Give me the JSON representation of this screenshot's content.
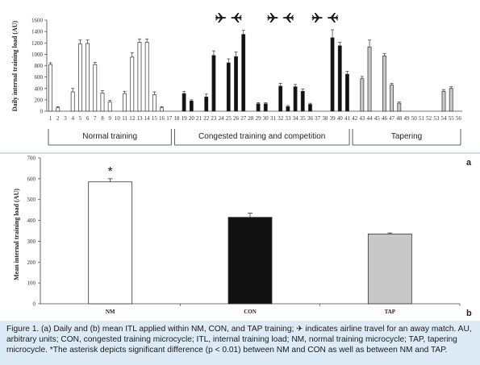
{
  "caption": "Figure 1.  (a) Daily and (b) mean ITL applied within NM, CON, and TAP training; ✈ indicates airline travel for an away match. AU, arbitrary units; CON, congested training microcycle; ITL, internal training load; NM, normal training microcycle; TAP, tapering microcycle. *The asterisk depicts significant difference (p < 0.01) between NM and CON as well as between NM and TAP.",
  "colors": {
    "normal": "#ffffff",
    "congested": "#111111",
    "tapering": "#c8c8c8",
    "outline": "#333333",
    "caption_bg": "#dcebf6"
  },
  "chart_data": [
    {
      "type": "bar",
      "panel_label": "a",
      "ylabel": "Daily internal training load (AU)",
      "ylim": [
        0,
        1600
      ],
      "yticks": [
        0,
        200,
        400,
        600,
        800,
        1000,
        1200,
        1400,
        1600
      ],
      "x": [
        1,
        2,
        3,
        4,
        5,
        6,
        7,
        8,
        9,
        10,
        11,
        12,
        13,
        14,
        15,
        16,
        17,
        18,
        19,
        20,
        21,
        22,
        23,
        24,
        25,
        26,
        27,
        28,
        29,
        30,
        31,
        32,
        33,
        34,
        35,
        36,
        37,
        38,
        39,
        40,
        41,
        42,
        43,
        44,
        45,
        46,
        47,
        48,
        49,
        50,
        51,
        52,
        53,
        54,
        55,
        56
      ],
      "values": [
        820,
        60,
        0,
        340,
        1180,
        1190,
        820,
        320,
        160,
        0,
        310,
        950,
        1210,
        1210,
        290,
        60,
        0,
        0,
        310,
        180,
        0,
        250,
        980,
        0,
        850,
        960,
        1350,
        0,
        130,
        130,
        0,
        440,
        80,
        430,
        350,
        120,
        0,
        0,
        1290,
        1150,
        650,
        0,
        570,
        1130,
        0,
        970,
        460,
        140,
        0,
        0,
        0,
        0,
        0,
        350,
        400,
        0
      ],
      "errors": [
        30,
        20,
        0,
        60,
        70,
        60,
        40,
        40,
        30,
        0,
        40,
        80,
        60,
        60,
        50,
        20,
        0,
        0,
        40,
        20,
        0,
        50,
        80,
        0,
        70,
        80,
        70,
        0,
        20,
        20,
        0,
        50,
        20,
        40,
        40,
        20,
        0,
        0,
        140,
        60,
        50,
        0,
        40,
        120,
        0,
        40,
        30,
        20,
        0,
        0,
        0,
        0,
        0,
        30,
        30,
        0
      ],
      "phase_of_day": [
        "normal",
        "normal",
        "normal",
        "normal",
        "normal",
        "normal",
        "normal",
        "normal",
        "normal",
        "normal",
        "normal",
        "normal",
        "normal",
        "normal",
        "normal",
        "normal",
        "normal",
        "congested",
        "congested",
        "congested",
        "congested",
        "congested",
        "congested",
        "congested",
        "congested",
        "congested",
        "congested",
        "congested",
        "congested",
        "congested",
        "congested",
        "congested",
        "congested",
        "congested",
        "congested",
        "congested",
        "congested",
        "congested",
        "congested",
        "congested",
        "congested",
        "tapering",
        "tapering",
        "tapering",
        "tapering",
        "tapering",
        "tapering",
        "tapering",
        "tapering",
        "tapering",
        "tapering",
        "tapering",
        "tapering",
        "tapering",
        "tapering",
        "tapering"
      ],
      "airline_travel": [
        {
          "day": 24,
          "direction": "outbound"
        },
        {
          "day": 26,
          "direction": "return"
        },
        {
          "day": 31,
          "direction": "outbound"
        },
        {
          "day": 33,
          "direction": "return"
        },
        {
          "day": 37,
          "direction": "outbound"
        },
        {
          "day": 39,
          "direction": "return"
        }
      ],
      "phases": [
        {
          "label": "Normal training",
          "start_day": 1,
          "end_day": 17
        },
        {
          "label": "Congested training and competition",
          "start_day": 18,
          "end_day": 41
        },
        {
          "label": "Tapering",
          "start_day": 42,
          "end_day": 56
        }
      ]
    },
    {
      "type": "bar",
      "panel_label": "b",
      "ylabel": "Mean internal training load (AU)",
      "ylim": [
        0,
        700
      ],
      "yticks": [
        0,
        100,
        200,
        300,
        400,
        500,
        600,
        700
      ],
      "categories": [
        "NM",
        "CON",
        "TAP"
      ],
      "values": [
        585,
        415,
        335
      ],
      "errors": [
        15,
        20,
        5
      ],
      "colors": [
        "#ffffff",
        "#111111",
        "#c8c8c8"
      ],
      "annotations": [
        {
          "category": "NM",
          "text": "*"
        }
      ]
    }
  ]
}
